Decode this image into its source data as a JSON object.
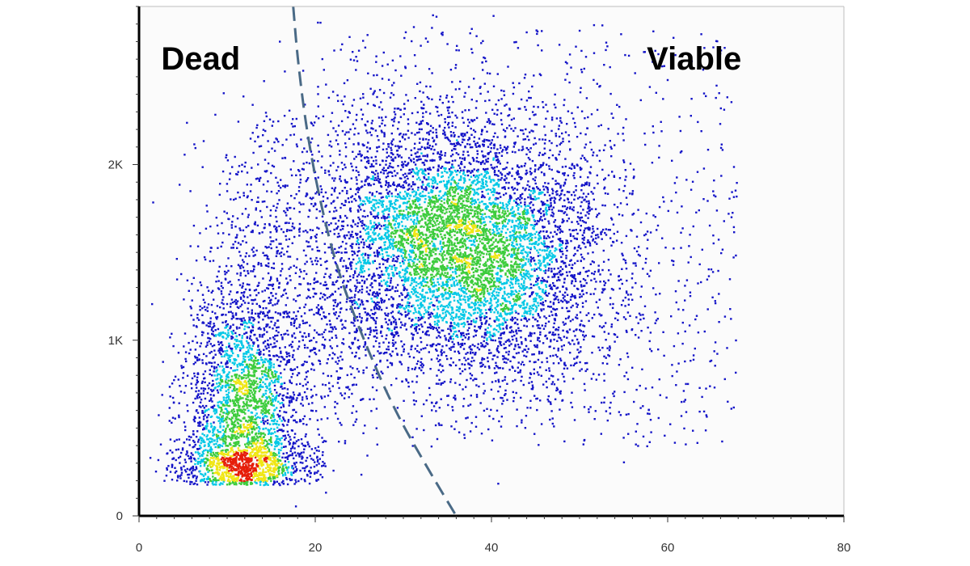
{
  "colors": {
    "background": "#ffffff",
    "plot_background": "#fbfbfb",
    "frame": "#000000",
    "gate_line": "#4a6a86",
    "density_low": "#1414c8",
    "density_mid_low": "#00c8e6",
    "density_mid": "#3ccc3c",
    "density_mid_high": "#f0e614",
    "density_high": "#e61e0a"
  },
  "chart_data": {
    "type": "scatter",
    "style": "density dot plot",
    "xlim": [
      0,
      80
    ],
    "ylim": [
      0,
      2900
    ],
    "x_ticks": [
      {
        "value": 0,
        "label": "0"
      },
      {
        "value": 20,
        "label": "20"
      },
      {
        "value": 40,
        "label": "40"
      },
      {
        "value": 60,
        "label": "60"
      },
      {
        "value": 80,
        "label": "80"
      }
    ],
    "y_ticks": [
      {
        "value": 0,
        "label": "0"
      },
      {
        "value": 1000,
        "label": "1K"
      },
      {
        "value": 2000,
        "label": "2K"
      }
    ],
    "xlabel": "",
    "ylabel": "",
    "grid": false,
    "gate_curve": {
      "style": "dashed",
      "points": [
        [
          17.5,
          2900
        ],
        [
          18,
          2600
        ],
        [
          19,
          2200
        ],
        [
          20.5,
          1800
        ],
        [
          22.5,
          1400
        ],
        [
          25.5,
          1000
        ],
        [
          29,
          600
        ],
        [
          33,
          250
        ],
        [
          36,
          0
        ]
      ]
    },
    "annotations": [
      {
        "id": "dead",
        "text": "Dead",
        "x": 7,
        "y": 2540
      },
      {
        "id": "viable",
        "text": "Viable",
        "x": 63,
        "y": 2540
      }
    ],
    "populations": [
      {
        "id": "dead-cluster",
        "center_x": 11.5,
        "center_y": 550,
        "spread_x": 3.2,
        "spread_y": 380,
        "peak_x": 11.5,
        "peak_y": 500
      },
      {
        "id": "viable-cluster",
        "center_x": 37,
        "center_y": 1550,
        "spread_x": 8,
        "spread_y": 380,
        "peak_x": 37,
        "peak_y": 1650
      }
    ]
  }
}
